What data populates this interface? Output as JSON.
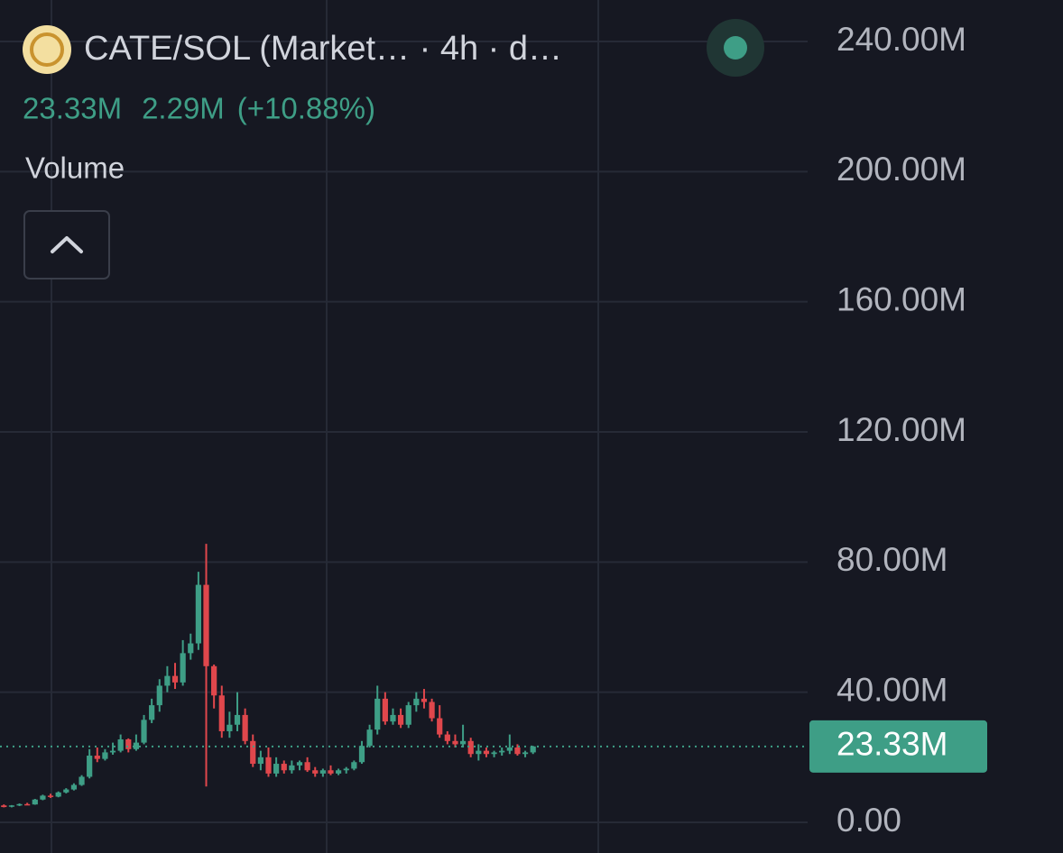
{
  "chart_data": {
    "type": "candlestick",
    "title": "CATE/SOL (Market… · 4h · d…",
    "legend_values": [
      "23.33M",
      "2.29M",
      "(+10.88%)"
    ],
    "indicator": "Volume",
    "up_color": "#3e9e86",
    "down_color": "#e0474c",
    "grid": true,
    "ylim": [
      0,
      240
    ],
    "yticks": [
      {
        "value": 0,
        "label": "0.00"
      },
      {
        "value": 40,
        "label": "40.00M"
      },
      {
        "value": 80,
        "label": "80.00M"
      },
      {
        "value": 120,
        "label": "120.00M"
      },
      {
        "value": 160,
        "label": "160.00M"
      },
      {
        "value": 200,
        "label": "200.00M"
      },
      {
        "value": 240,
        "label": "240.00M"
      }
    ],
    "last_price": {
      "value": 23.33,
      "label": "23.33M"
    },
    "open": [
      5.2,
      4.8,
      5.2,
      5.6,
      5.5,
      7.0,
      8.2,
      7.9,
      9.2,
      10.1,
      11.5,
      14.0,
      20.5,
      19.5,
      21.5,
      22.0,
      25.5,
      22.5,
      24.5,
      31.5,
      36,
      42,
      45,
      43,
      52,
      55,
      73,
      48,
      39,
      28,
      30,
      33,
      25,
      18,
      20,
      15,
      18,
      16,
      17.5,
      18.5,
      16,
      15,
      16,
      15,
      16,
      16.5,
      18.5,
      23.5,
      28.5,
      38,
      31,
      33,
      30,
      36,
      38,
      37,
      32,
      27,
      25,
      24,
      25,
      21,
      22,
      21,
      21.5,
      22,
      23,
      21,
      21.5
    ],
    "high": [
      5.5,
      5.3,
      5.8,
      6.0,
      7.2,
      8.5,
      8.8,
      9.5,
      10.5,
      12.0,
      14.5,
      22.5,
      23,
      22.5,
      24.5,
      27,
      25.8,
      27,
      33,
      38,
      44,
      48,
      49,
      56,
      58,
      77,
      85.6,
      48.5,
      42,
      34,
      40,
      35,
      27,
      22,
      23,
      20,
      19,
      19,
      19,
      20,
      17,
      16.5,
      17.5,
      16.5,
      17,
      19,
      25,
      30,
      42,
      40,
      35,
      35,
      37,
      40,
      41,
      38,
      36,
      28,
      27,
      30,
      26,
      24,
      23,
      22,
      23,
      27,
      24,
      22,
      23.5
    ],
    "low": [
      4.6,
      4.6,
      5.0,
      5.3,
      5.4,
      6.8,
      7.5,
      7.7,
      8.9,
      9.8,
      11.2,
      13.5,
      18.5,
      19,
      20.8,
      21.5,
      21.5,
      22,
      24,
      30.5,
      34,
      40,
      41,
      42,
      50,
      53,
      11,
      35,
      26,
      26,
      28,
      24,
      17,
      16,
      14,
      14,
      15,
      15,
      16,
      15.5,
      14,
      14,
      14.5,
      14.5,
      15,
      16,
      18,
      23,
      27,
      30,
      30,
      29,
      29,
      34,
      35,
      31,
      26,
      24,
      23,
      23,
      20,
      19,
      20,
      20,
      20.5,
      21,
      20.5,
      20,
      21
    ],
    "close": [
      4.7,
      5.2,
      5.6,
      5.5,
      7.0,
      8.2,
      7.9,
      9.2,
      10.1,
      11.5,
      14.0,
      20.5,
      19.5,
      21.5,
      22.0,
      25.5,
      22.5,
      24.5,
      31.5,
      36,
      42,
      45,
      43,
      52,
      55,
      73,
      48,
      39,
      28,
      30,
      33,
      25,
      18,
      20,
      15,
      18,
      16,
      17.5,
      18.5,
      16,
      15,
      16,
      15,
      16,
      16.5,
      18.5,
      23.5,
      28.5,
      38,
      31,
      33,
      30,
      36,
      38,
      37,
      32,
      27,
      25,
      24,
      25,
      21,
      22,
      21,
      21.5,
      22,
      23,
      21,
      21.5,
      23.33
    ]
  }
}
